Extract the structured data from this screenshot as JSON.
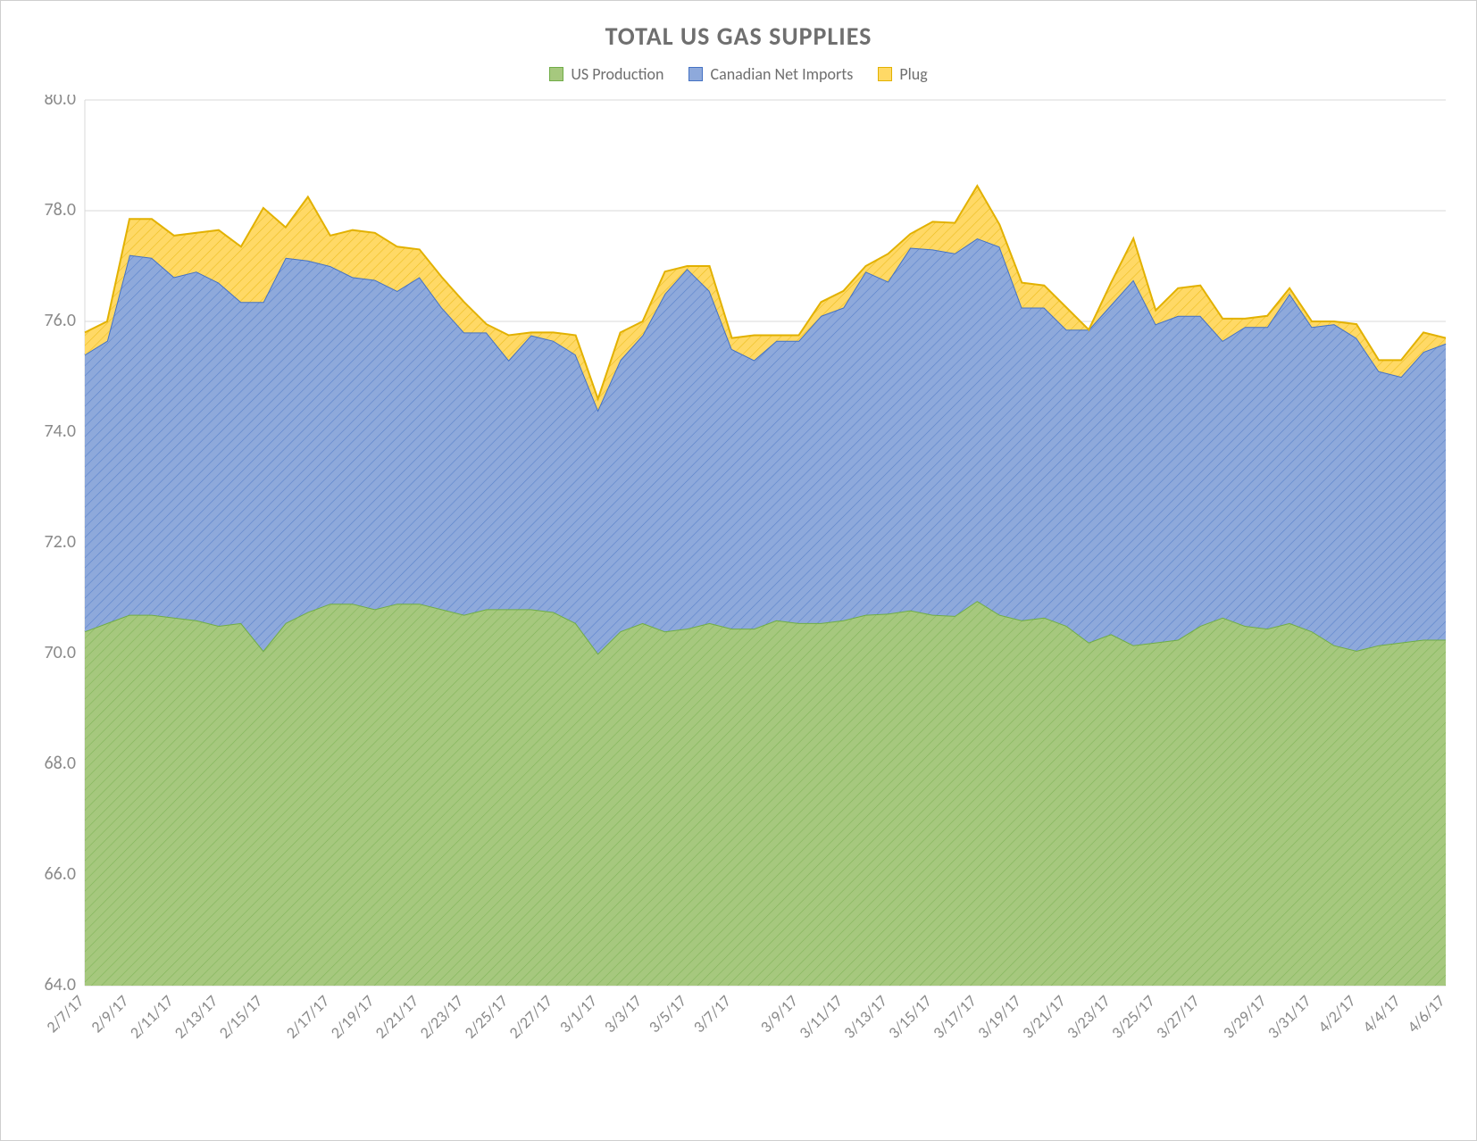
{
  "chart": {
    "type": "area-stacked",
    "title": "TOTAL US GAS SUPPLIES",
    "title_fontsize": 28,
    "title_color": "#6f6f6f",
    "background_color": "#ffffff",
    "plot_background": "#ffffff",
    "grid_color": "#d9d9d9",
    "axis_label_color": "#8a8a8a",
    "axis_label_fontsize": 20,
    "xaxis_label_fontsize": 18,
    "ylim": [
      64.0,
      80.0
    ],
    "ytick_step": 2.0,
    "yticks": [
      "64.0",
      "66.0",
      "68.0",
      "70.0",
      "72.0",
      "74.0",
      "76.0",
      "78.0",
      "80.0"
    ],
    "x_labels": [
      "2/7/17",
      "2/9/17",
      "2/11/17",
      "2/13/17",
      "2/15/17",
      "2/17/17",
      "2/19/17",
      "2/21/17",
      "2/23/17",
      "2/25/17",
      "2/27/17",
      "3/1/17",
      "3/3/17",
      "3/5/17",
      "3/7/17",
      "3/9/17",
      "3/11/17",
      "3/13/17",
      "3/15/17",
      "3/17/17",
      "3/19/17",
      "3/21/17",
      "3/23/17",
      "3/25/17",
      "3/27/17",
      "3/29/17",
      "3/31/17",
      "4/2/17",
      "4/4/17",
      "4/6/17"
    ],
    "x_label_rotation_deg": -45,
    "legend": {
      "position": "top",
      "items": [
        {
          "label": "US Production",
          "color_fill": "#a6c87e",
          "color_line": "#70ad47"
        },
        {
          "label": "Canadian Net Imports",
          "color_fill": "#8ea9db",
          "color_line": "#4472c4"
        },
        {
          "label": "Plug",
          "color_fill": "#ffd966",
          "color_line": "#e2b100"
        }
      ]
    },
    "series": [
      {
        "name": "US Production",
        "color_fill": "#a6c87e",
        "color_line": "#70ad47",
        "hatch": "diag-green",
        "values": [
          70.4,
          70.55,
          70.7,
          70.7,
          70.65,
          70.6,
          70.5,
          70.55,
          70.05,
          70.55,
          70.75,
          70.9,
          70.9,
          70.8,
          70.9,
          70.9,
          70.8,
          70.7,
          70.8,
          70.8,
          70.8,
          70.75,
          70.55,
          70.0,
          70.4,
          70.55,
          70.4,
          70.45,
          70.55,
          70.45,
          70.45,
          70.6,
          70.55,
          70.55,
          70.6,
          70.7,
          70.72,
          70.78,
          70.7,
          70.68,
          70.95,
          70.7,
          70.6,
          70.65,
          70.5,
          70.2,
          70.35,
          70.15,
          70.2,
          70.25,
          70.5,
          70.65,
          70.5,
          70.45,
          70.55,
          70.4,
          70.15,
          70.05,
          70.15,
          70.2,
          70.25,
          70.25
        ]
      },
      {
        "name": "Canadian Net Imports",
        "color_fill": "#8ea9db",
        "color_line": "#4472c4",
        "hatch": "diag-blue",
        "values": [
          5.0,
          5.1,
          6.5,
          6.45,
          6.15,
          6.3,
          6.2,
          5.8,
          6.3,
          6.6,
          6.35,
          6.1,
          5.9,
          5.95,
          5.65,
          5.9,
          5.45,
          5.1,
          5.0,
          4.5,
          4.95,
          4.9,
          4.85,
          4.4,
          4.9,
          5.2,
          6.1,
          6.5,
          6.0,
          5.05,
          4.85,
          5.05,
          5.1,
          5.55,
          5.65,
          6.2,
          6.0,
          6.55,
          6.6,
          6.55,
          6.55,
          6.65,
          5.65,
          5.6,
          5.35,
          5.65,
          5.95,
          6.6,
          5.75,
          5.85,
          5.6,
          5.0,
          5.4,
          5.45,
          5.95,
          5.5,
          5.8,
          5.65,
          4.95,
          4.8,
          5.2,
          5.35
        ]
      },
      {
        "name": "Plug",
        "color_fill": "#ffd966",
        "color_line": "#e2b100",
        "hatch": "diag-yellow",
        "values": [
          0.4,
          0.35,
          0.65,
          0.7,
          0.75,
          0.7,
          0.95,
          1.0,
          1.7,
          0.55,
          1.15,
          0.55,
          0.85,
          0.85,
          0.8,
          0.5,
          0.55,
          0.55,
          0.15,
          0.45,
          0.05,
          0.15,
          0.35,
          0.2,
          0.5,
          0.25,
          0.4,
          0.05,
          0.45,
          0.2,
          0.45,
          0.1,
          0.1,
          0.25,
          0.3,
          0.1,
          0.5,
          0.25,
          0.5,
          0.55,
          0.95,
          0.4,
          0.45,
          0.4,
          0.4,
          0.0,
          0.4,
          0.75,
          0.25,
          0.5,
          0.55,
          0.4,
          0.15,
          0.2,
          0.1,
          0.1,
          0.05,
          0.25,
          0.2,
          0.3,
          0.35,
          0.1
        ]
      }
    ]
  }
}
